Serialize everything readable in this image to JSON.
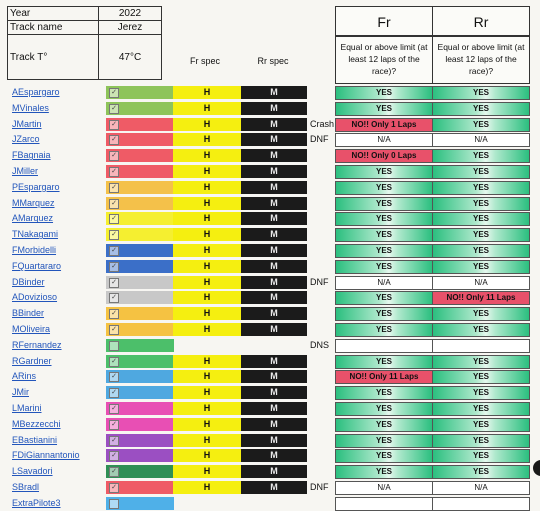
{
  "info": {
    "year_label": "Year",
    "year_value": "2022",
    "track_label": "Track name",
    "track_value": "Jerez",
    "temp_label": "Track T°",
    "temp_value": "47°C"
  },
  "spec_headers": {
    "fr": "Fr spec",
    "rr": "Rr spec"
  },
  "result_headers": {
    "fr": "Fr",
    "rr": "Rr",
    "fr_sub": "Equal or above limit (at least 12 laps of the race)?",
    "rr_sub": "Equal or above limit (at least 12 laps of the race)?"
  },
  "colors": {
    "yes": "#2bbf7f",
    "no": "#e8516a",
    "front_spec": "#f5ef10",
    "rear_spec": "#1b1b1b",
    "link": "#2255bb"
  },
  "riders": [
    {
      "name": "AEspargaro",
      "team_color": "#8ec45a",
      "checked": true,
      "fr": "H",
      "rr": "M",
      "note": "",
      "fr_result": "YES",
      "fr_status": "yes",
      "rr_result": "YES",
      "rr_status": "yes"
    },
    {
      "name": "MVinales",
      "team_color": "#8ec45a",
      "checked": true,
      "fr": "H",
      "rr": "M",
      "note": "",
      "fr_result": "YES",
      "fr_status": "yes",
      "rr_result": "YES",
      "rr_status": "yes"
    },
    {
      "name": "JMartin",
      "team_color": "#ef5b66",
      "checked": true,
      "fr": "H",
      "rr": "M",
      "note": "Crash",
      "fr_result": "NO!! Only 1 Laps",
      "fr_status": "no",
      "rr_result": "YES",
      "rr_status": "yes"
    },
    {
      "name": "JZarco",
      "team_color": "#ef5b66",
      "checked": true,
      "fr": "H",
      "rr": "M",
      "note": "DNF",
      "fr_result": "N/A",
      "fr_status": "na",
      "rr_result": "N/A",
      "rr_status": "na"
    },
    {
      "name": "FBagnaia",
      "team_color": "#ef5b66",
      "checked": true,
      "fr": "H",
      "rr": "M",
      "note": "",
      "fr_result": "NO!! Only 0 Laps",
      "fr_status": "no",
      "rr_result": "YES",
      "rr_status": "yes"
    },
    {
      "name": "JMiller",
      "team_color": "#ef5b66",
      "checked": true,
      "fr": "H",
      "rr": "M",
      "note": "",
      "fr_result": "YES",
      "fr_status": "yes",
      "rr_result": "YES",
      "rr_status": "yes"
    },
    {
      "name": "PEspargaro",
      "team_color": "#f4c14a",
      "checked": true,
      "fr": "H",
      "rr": "M",
      "note": "",
      "fr_result": "YES",
      "fr_status": "yes",
      "rr_result": "YES",
      "rr_status": "yes"
    },
    {
      "name": "MMarquez",
      "team_color": "#f4c14a",
      "checked": true,
      "fr": "H",
      "rr": "M",
      "note": "",
      "fr_result": "YES",
      "fr_status": "yes",
      "rr_result": "YES",
      "rr_status": "yes"
    },
    {
      "name": "AMarquez",
      "team_color": "#f5ef30",
      "checked": true,
      "fr": "H",
      "rr": "M",
      "note": "",
      "fr_result": "YES",
      "fr_status": "yes",
      "rr_result": "YES",
      "rr_status": "yes"
    },
    {
      "name": "TNakagami",
      "team_color": "#f5ef30",
      "checked": true,
      "fr": "H",
      "rr": "M",
      "note": "",
      "fr_result": "YES",
      "fr_status": "yes",
      "rr_result": "YES",
      "rr_status": "yes"
    },
    {
      "name": "FMorbidelli",
      "team_color": "#3b6fc8",
      "checked": true,
      "fr": "H",
      "rr": "M",
      "note": "",
      "fr_result": "YES",
      "fr_status": "yes",
      "rr_result": "YES",
      "rr_status": "yes"
    },
    {
      "name": "FQuartararo",
      "team_color": "#3b6fc8",
      "checked": true,
      "fr": "H",
      "rr": "M",
      "note": "",
      "fr_result": "YES",
      "fr_status": "yes",
      "rr_result": "YES",
      "rr_status": "yes"
    },
    {
      "name": "DBinder",
      "team_color": "#c8c8c8",
      "checked": true,
      "fr": "H",
      "rr": "M",
      "note": "DNF",
      "fr_result": "N/A",
      "fr_status": "na",
      "rr_result": "N/A",
      "rr_status": "na"
    },
    {
      "name": "ADovizioso",
      "team_color": "#c8c8c8",
      "checked": true,
      "fr": "H",
      "rr": "M",
      "note": "",
      "fr_result": "YES",
      "fr_status": "yes",
      "rr_result": "NO!! Only 11 Laps",
      "rr_status": "no"
    },
    {
      "name": "BBinder",
      "team_color": "#f5c242",
      "checked": true,
      "fr": "H",
      "rr": "M",
      "note": "",
      "fr_result": "YES",
      "fr_status": "yes",
      "rr_result": "YES",
      "rr_status": "yes"
    },
    {
      "name": "MOliveira",
      "team_color": "#f5c242",
      "checked": true,
      "fr": "H",
      "rr": "M",
      "note": "",
      "fr_result": "YES",
      "fr_status": "yes",
      "rr_result": "YES",
      "rr_status": "yes"
    },
    {
      "name": "RFernandez",
      "team_color": "#4cbf6a",
      "checked": false,
      "fr": "",
      "rr": "",
      "note": "DNS",
      "fr_result": "",
      "fr_status": "blank",
      "rr_result": "",
      "rr_status": "blank"
    },
    {
      "name": "RGardner",
      "team_color": "#4cbf6a",
      "checked": true,
      "fr": "H",
      "rr": "M",
      "note": "",
      "fr_result": "YES",
      "fr_status": "yes",
      "rr_result": "YES",
      "rr_status": "yes"
    },
    {
      "name": "ARins",
      "team_color": "#4fa8e0",
      "checked": true,
      "fr": "H",
      "rr": "M",
      "note": "",
      "fr_result": "NO!! Only 11 Laps",
      "fr_status": "no",
      "rr_result": "YES",
      "rr_status": "yes"
    },
    {
      "name": "JMir",
      "team_color": "#4fa8e0",
      "checked": true,
      "fr": "H",
      "rr": "M",
      "note": "",
      "fr_result": "YES",
      "fr_status": "yes",
      "rr_result": "YES",
      "rr_status": "yes"
    },
    {
      "name": "LMarini",
      "team_color": "#e84fb4",
      "checked": true,
      "fr": "H",
      "rr": "M",
      "note": "",
      "fr_result": "YES",
      "fr_status": "yes",
      "rr_result": "YES",
      "rr_status": "yes"
    },
    {
      "name": "MBezzecchi",
      "team_color": "#e84fb4",
      "checked": true,
      "fr": "H",
      "rr": "M",
      "note": "",
      "fr_result": "YES",
      "fr_status": "yes",
      "rr_result": "YES",
      "rr_status": "yes"
    },
    {
      "name": "EBastianini",
      "team_color": "#9b4fc2",
      "checked": true,
      "fr": "H",
      "rr": "M",
      "note": "",
      "fr_result": "YES",
      "fr_status": "yes",
      "rr_result": "YES",
      "rr_status": "yes"
    },
    {
      "name": "FDiGiannantonio",
      "team_color": "#9b4fc2",
      "checked": true,
      "fr": "H",
      "rr": "M",
      "note": "",
      "fr_result": "YES",
      "fr_status": "yes",
      "rr_result": "YES",
      "rr_status": "yes"
    },
    {
      "name": "LSavadori",
      "team_color": "#2f8f55",
      "checked": true,
      "fr": "H",
      "rr": "M",
      "note": "",
      "fr_result": "YES",
      "fr_status": "yes",
      "rr_result": "YES",
      "rr_status": "yes"
    },
    {
      "name": "SBradl",
      "team_color": "#ef5b66",
      "checked": true,
      "fr": "H",
      "rr": "M",
      "note": "DNF",
      "fr_result": "N/A",
      "fr_status": "na",
      "rr_result": "N/A",
      "rr_status": "na"
    },
    {
      "name": "ExtraPilote3",
      "team_color": "#4fb0e8",
      "checked": false,
      "fr": "",
      "rr": "",
      "note": "",
      "fr_result": "",
      "fr_status": "blank",
      "rr_result": "",
      "rr_status": "blank"
    }
  ]
}
